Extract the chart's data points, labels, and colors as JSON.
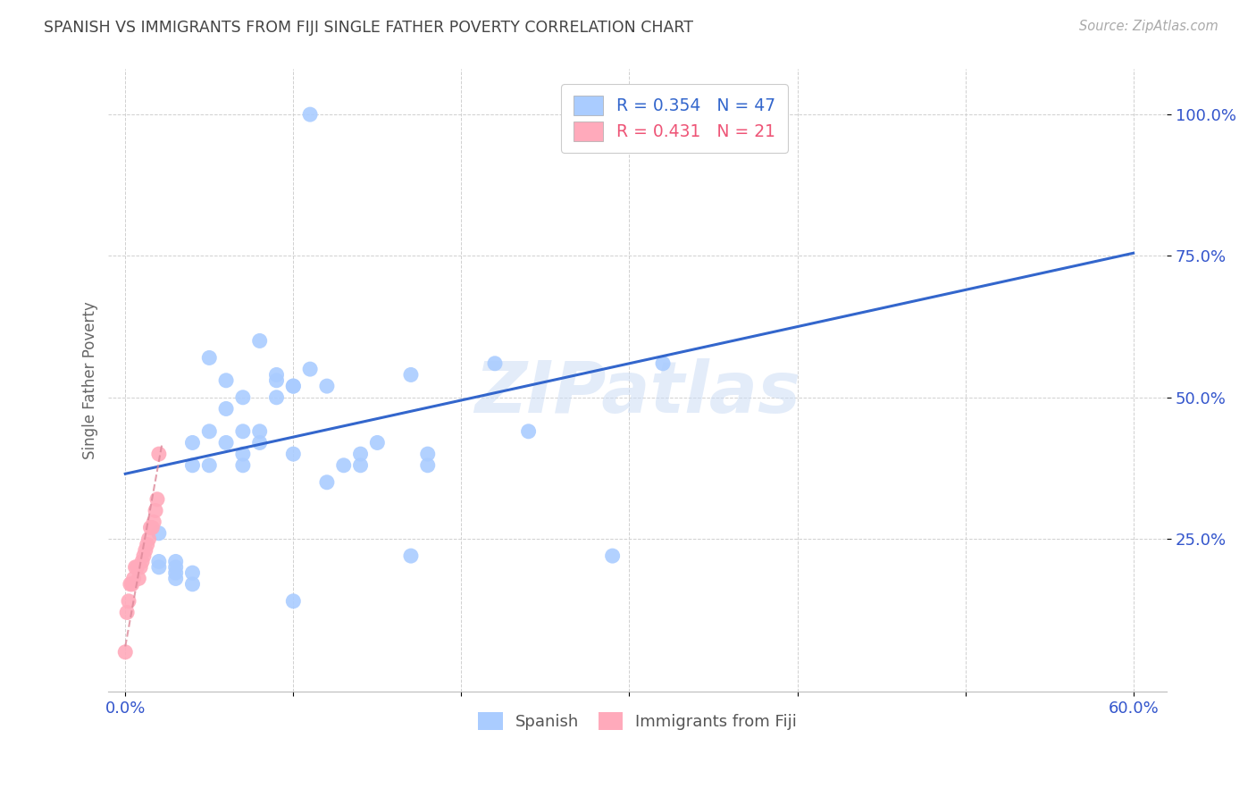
{
  "title": "SPANISH VS IMMIGRANTS FROM FIJI SINGLE FATHER POVERTY CORRELATION CHART",
  "source": "Source: ZipAtlas.com",
  "ylabel_label": "Single Father Poverty",
  "x_tick_labels": [
    "0.0%",
    "",
    "",
    "",
    "",
    "",
    "60.0%"
  ],
  "x_tick_positions": [
    0.0,
    0.1,
    0.2,
    0.3,
    0.4,
    0.5,
    0.6
  ],
  "y_tick_labels": [
    "100.0%",
    "75.0%",
    "50.0%",
    "25.0%"
  ],
  "y_tick_positions": [
    1.0,
    0.75,
    0.5,
    0.25
  ],
  "xlim": [
    -0.01,
    0.62
  ],
  "ylim": [
    -0.02,
    1.08
  ],
  "background_color": "#ffffff",
  "grid_color": "#d0d0d0",
  "title_color": "#444444",
  "axis_label_color": "#3355cc",
  "ylabel_color": "#666666",
  "watermark": "ZIPatlas",
  "legend_R1": "R = 0.354",
  "legend_N1": "N = 47",
  "legend_R2": "R = 0.431",
  "legend_N2": "N = 21",
  "spanish_color": "#aaccff",
  "fiji_color": "#ffaabb",
  "line_color_spanish": "#3366cc",
  "line_color_fiji": "#dd8899",
  "spanish_scatter_x": [
    0.02,
    0.02,
    0.02,
    0.03,
    0.03,
    0.03,
    0.03,
    0.04,
    0.04,
    0.04,
    0.04,
    0.05,
    0.05,
    0.05,
    0.06,
    0.06,
    0.06,
    0.07,
    0.07,
    0.07,
    0.07,
    0.08,
    0.08,
    0.08,
    0.09,
    0.09,
    0.09,
    0.1,
    0.1,
    0.1,
    0.11,
    0.12,
    0.12,
    0.13,
    0.14,
    0.14,
    0.15,
    0.17,
    0.17,
    0.18,
    0.18,
    0.22,
    0.24,
    0.29,
    0.32,
    0.1,
    0.11
  ],
  "spanish_scatter_y": [
    0.26,
    0.2,
    0.21,
    0.18,
    0.19,
    0.2,
    0.21,
    0.17,
    0.19,
    0.38,
    0.42,
    0.38,
    0.44,
    0.57,
    0.42,
    0.48,
    0.53,
    0.4,
    0.44,
    0.5,
    0.38,
    0.42,
    0.44,
    0.6,
    0.5,
    0.54,
    0.53,
    0.4,
    0.52,
    0.52,
    0.55,
    0.52,
    0.35,
    0.38,
    0.4,
    0.38,
    0.42,
    0.22,
    0.54,
    0.38,
    0.4,
    0.56,
    0.44,
    0.22,
    0.56,
    0.14,
    1.0
  ],
  "fiji_scatter_x": [
    0.0,
    0.001,
    0.002,
    0.003,
    0.004,
    0.005,
    0.006,
    0.007,
    0.008,
    0.009,
    0.01,
    0.011,
    0.012,
    0.013,
    0.014,
    0.015,
    0.016,
    0.017,
    0.018,
    0.019,
    0.02
  ],
  "fiji_scatter_y": [
    0.05,
    0.12,
    0.14,
    0.17,
    0.17,
    0.18,
    0.2,
    0.2,
    0.18,
    0.2,
    0.21,
    0.22,
    0.23,
    0.24,
    0.25,
    0.27,
    0.27,
    0.28,
    0.3,
    0.32,
    0.4
  ],
  "spanish_line_x0": 0.0,
  "spanish_line_x1": 0.6,
  "spanish_line_y0": 0.365,
  "spanish_line_y1": 0.755,
  "fiji_line_x0": 0.0,
  "fiji_line_x1": 0.022,
  "fiji_line_y0": 0.06,
  "fiji_line_y1": 0.42
}
